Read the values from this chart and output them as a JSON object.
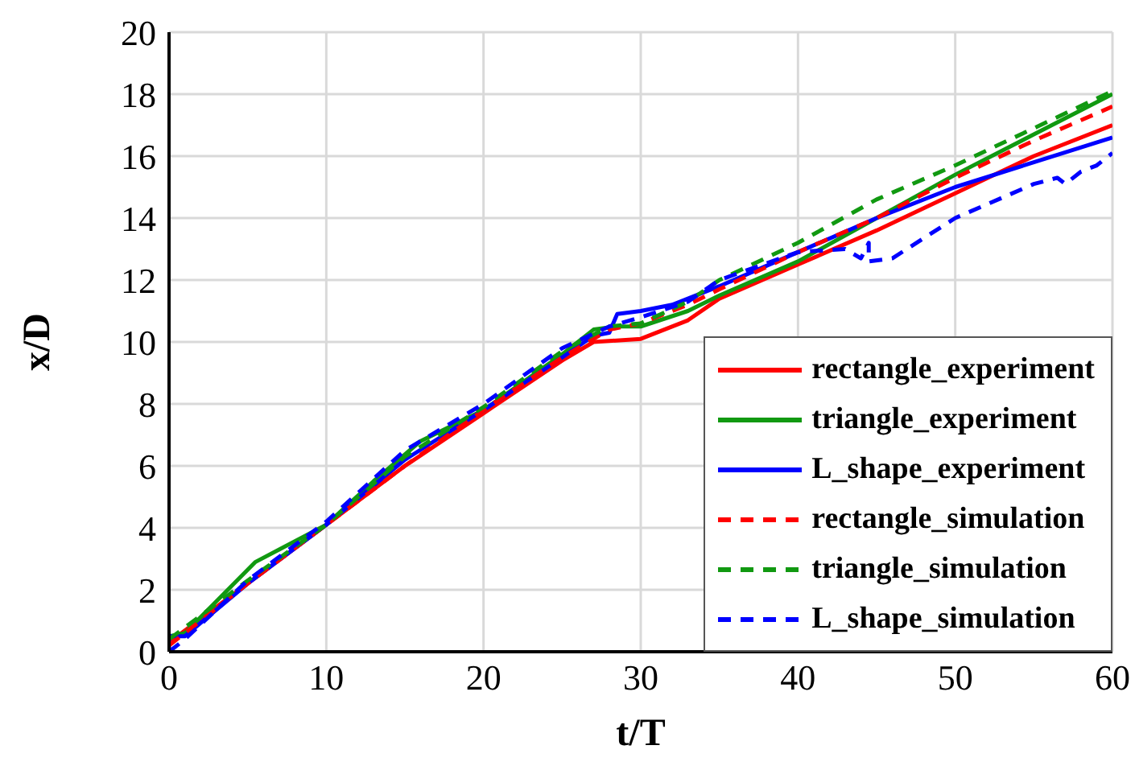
{
  "chart_data": {
    "type": "line",
    "xlabel": "t/T",
    "ylabel": "x/D",
    "xlim": [
      0,
      60
    ],
    "ylim": [
      0,
      20
    ],
    "xticks": [
      0,
      10,
      20,
      30,
      40,
      50,
      60
    ],
    "yticks": [
      0,
      2,
      4,
      6,
      8,
      10,
      12,
      14,
      16,
      18,
      20
    ],
    "grid": true,
    "legend": "bottom right",
    "marker": "none",
    "series": [
      {
        "name": "rectangle_experiment",
        "color": "#ff0000",
        "line_style": "solid",
        "x": [
          0,
          5,
          10,
          15,
          20,
          25,
          27,
          30,
          33,
          35,
          40,
          45,
          50,
          55,
          60
        ],
        "values": [
          0.3,
          2.2,
          4.1,
          6,
          7.7,
          9.4,
          10,
          10.1,
          10.7,
          11.4,
          12.5,
          13.6,
          14.8,
          16,
          17
        ]
      },
      {
        "name": "triangle_experiment",
        "color": "#119911",
        "line_style": "solid",
        "x": [
          0,
          1,
          5.5,
          7,
          10,
          13,
          16,
          20,
          25,
          27,
          28.5,
          30,
          33,
          35,
          40,
          45,
          50,
          55,
          60
        ],
        "values": [
          0.5,
          0.6,
          2.9,
          3.3,
          4.1,
          5.5,
          6.8,
          7.8,
          9.6,
          10.4,
          10.5,
          10.5,
          11,
          11.5,
          12.6,
          14,
          15.4,
          16.7,
          18
        ]
      },
      {
        "name": "L_shape_experiment",
        "color": "#0000ff",
        "line_style": "solid",
        "x": [
          0,
          0,
          1,
          5,
          10,
          15,
          20,
          25,
          27,
          28,
          28.5,
          30,
          32,
          35,
          40,
          45,
          50,
          55,
          60
        ],
        "values": [
          0.1,
          0.5,
          0.5,
          2.2,
          4.1,
          6.2,
          7.8,
          9.5,
          10.2,
          10.3,
          10.9,
          11,
          11.2,
          11.8,
          12.9,
          14,
          15,
          15.8,
          16.6
        ]
      },
      {
        "name": "rectangle_simulation",
        "color": "#ff0000",
        "line_style": "dashed",
        "x": [
          0,
          5,
          10,
          15,
          20,
          25,
          28,
          30,
          33,
          35,
          40,
          45,
          50,
          55,
          60
        ],
        "values": [
          0.2,
          2.2,
          4.1,
          6,
          7.8,
          9.5,
          10.4,
          10.6,
          11.2,
          11.7,
          12.9,
          14,
          15.3,
          16.5,
          17.6
        ]
      },
      {
        "name": "triangle_simulation",
        "color": "#119911",
        "line_style": "dashed",
        "x": [
          0,
          5,
          10,
          15,
          20,
          25,
          28,
          30,
          33,
          35,
          40,
          45,
          50,
          55,
          60
        ],
        "values": [
          0.4,
          2.3,
          4.1,
          6.3,
          7.9,
          9.7,
          10.5,
          10.6,
          11.3,
          12,
          13.2,
          14.6,
          15.7,
          16.9,
          18.1
        ]
      },
      {
        "name": "L_shape_simulation",
        "color": "#0000ff",
        "line_style": "dashed",
        "x": [
          0,
          1,
          5,
          10,
          15,
          20,
          25,
          28,
          30,
          33,
          35,
          40,
          43,
          44,
          44.5,
          44.5,
          46,
          50,
          55,
          56.5,
          57,
          58,
          59,
          60
        ],
        "values": [
          0,
          0.4,
          2.3,
          4.2,
          6.5,
          8,
          9.8,
          10.5,
          10.8,
          11.3,
          12,
          12.9,
          13,
          12.7,
          13.2,
          12.6,
          12.7,
          14,
          15.1,
          15.3,
          15.1,
          15.5,
          15.7,
          16.1
        ]
      }
    ]
  }
}
